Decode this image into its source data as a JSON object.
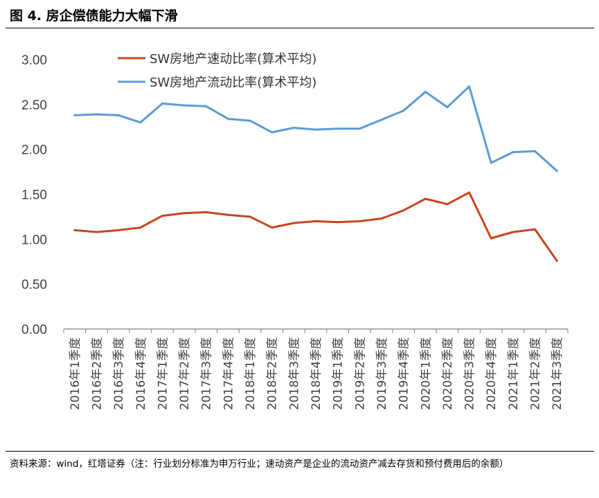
{
  "figure": {
    "title": "图 4. 房企偿债能力大幅下滑",
    "source_note": "资料来源：wind，红塔证券（注：行业划分标准为申万行业；速动资产是企业的流动资产减去存货和预付费用后的余额）"
  },
  "colors": {
    "quick_ratio": "#C8451E",
    "current_ratio": "#5B9BD5",
    "axis": "#808080",
    "text": "#404040"
  },
  "chart_data": {
    "type": "line",
    "categories": [
      "2016年1季度",
      "2016年2季度",
      "2016年3季度",
      "2016年4季度",
      "2017年1季度",
      "2017年2季度",
      "2017年3季度",
      "2017年4季度",
      "2018年1季度",
      "2018年2季度",
      "2018年3季度",
      "2018年4季度",
      "2019年1季度",
      "2019年2季度",
      "2019年3季度",
      "2019年4季度",
      "2020年1季度",
      "2020年2季度",
      "2020年3季度",
      "2020年4季度",
      "2021年1季度",
      "2021年2季度",
      "2021年3季度"
    ],
    "series": [
      {
        "name": "SW房地产速动比率(算术平均)",
        "color": "#C8451E",
        "values": [
          1.1,
          1.08,
          1.1,
          1.13,
          1.26,
          1.29,
          1.3,
          1.27,
          1.25,
          1.13,
          1.18,
          1.2,
          1.19,
          1.2,
          1.23,
          1.32,
          1.45,
          1.39,
          1.52,
          1.01,
          1.08,
          1.11,
          0.76
        ]
      },
      {
        "name": "SW房地产流动比率(算术平均)",
        "color": "#5B9BD5",
        "values": [
          2.38,
          2.39,
          2.38,
          2.3,
          2.51,
          2.49,
          2.48,
          2.34,
          2.32,
          2.19,
          2.24,
          2.22,
          2.23,
          2.23,
          2.33,
          2.43,
          2.64,
          2.47,
          2.7,
          1.85,
          1.97,
          1.98,
          1.76
        ]
      }
    ],
    "yticks": [
      "0.00",
      "0.50",
      "1.00",
      "1.50",
      "2.00",
      "2.50",
      "3.00"
    ],
    "ylim": [
      0,
      3
    ],
    "grid": false,
    "legend_position": "top-left"
  }
}
